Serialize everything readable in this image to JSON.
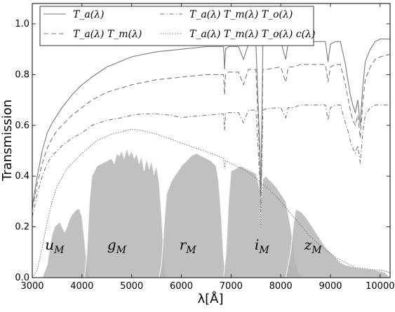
{
  "chart_data": {
    "type": "line",
    "title": "",
    "xlabel": "λ[Å]",
    "ylabel": "Transmission",
    "xlim": [
      3000,
      10200
    ],
    "ylim": [
      0.0,
      1.08
    ],
    "xticks": [
      3000,
      4000,
      5000,
      6000,
      7000,
      8000,
      9000,
      10000
    ],
    "xtick_labels": [
      "3000",
      "4000",
      "5000",
      "6000",
      "7000",
      "8000",
      "9000",
      "10000"
    ],
    "yticks": [
      0.0,
      0.2,
      0.4,
      0.6,
      0.8,
      1.0
    ],
    "ytick_labels": [
      "0.0",
      "0.2",
      "0.4",
      "0.6",
      "0.8",
      "1.0"
    ],
    "grid": false,
    "legend_position": "top",
    "legend": [
      {
        "label": "T_a(λ)",
        "style": "solid"
      },
      {
        "label": "T_a(λ) T_m(λ)",
        "style": "dashed"
      },
      {
        "label": "T_a(λ) T_m(λ) T_o(λ)",
        "style": "dashdot"
      },
      {
        "label": "T_a(λ) T_m(λ) T_o(λ) c(λ)",
        "style": "dotted"
      }
    ],
    "series": [
      {
        "name": "T_a(λ)",
        "style": "solid",
        "x": [
          3000,
          3100,
          3200,
          3300,
          3400,
          3500,
          3600,
          3800,
          4000,
          4200,
          4500,
          5000,
          5500,
          6000,
          6500,
          6850,
          6870,
          6890,
          6950,
          7150,
          7250,
          7350,
          7500,
          7580,
          7600,
          7640,
          7700,
          8000,
          8100,
          8150,
          8250,
          8400,
          8900,
          8950,
          9000,
          9100,
          9200,
          9300,
          9350,
          9400,
          9450,
          9500,
          9550,
          9600,
          9650,
          9700,
          9800,
          9900,
          10000,
          10200
        ],
        "y": [
          0.28,
          0.4,
          0.5,
          0.57,
          0.61,
          0.64,
          0.67,
          0.72,
          0.76,
          0.79,
          0.83,
          0.87,
          0.89,
          0.9,
          0.91,
          0.91,
          0.82,
          0.9,
          0.91,
          0.91,
          0.86,
          0.92,
          0.92,
          0.5,
          0.32,
          0.92,
          0.92,
          0.93,
          0.86,
          0.93,
          0.93,
          0.93,
          0.93,
          0.85,
          0.92,
          0.93,
          0.93,
          0.84,
          0.78,
          0.72,
          0.68,
          0.65,
          0.7,
          0.6,
          0.75,
          0.85,
          0.9,
          0.93,
          0.94,
          0.94
        ]
      },
      {
        "name": "T_a(λ) T_m(λ)",
        "style": "dashed",
        "x": [
          3000,
          3100,
          3200,
          3300,
          3400,
          3500,
          3600,
          3800,
          4000,
          4200,
          4500,
          5000,
          5500,
          6000,
          6500,
          6850,
          6870,
          6890,
          6950,
          7150,
          7250,
          7350,
          7500,
          7580,
          7600,
          7640,
          7700,
          8000,
          8100,
          8150,
          8250,
          8400,
          8900,
          8950,
          9000,
          9100,
          9200,
          9300,
          9350,
          9400,
          9450,
          9500,
          9550,
          9600,
          9650,
          9700,
          9800,
          9900,
          10000,
          10200
        ],
        "y": [
          0.27,
          0.37,
          0.45,
          0.51,
          0.55,
          0.58,
          0.6,
          0.64,
          0.67,
          0.7,
          0.73,
          0.76,
          0.78,
          0.79,
          0.8,
          0.8,
          0.72,
          0.8,
          0.81,
          0.81,
          0.76,
          0.82,
          0.82,
          0.45,
          0.3,
          0.82,
          0.82,
          0.83,
          0.77,
          0.83,
          0.83,
          0.84,
          0.84,
          0.77,
          0.83,
          0.84,
          0.84,
          0.76,
          0.71,
          0.66,
          0.62,
          0.6,
          0.64,
          0.55,
          0.69,
          0.78,
          0.83,
          0.86,
          0.87,
          0.88
        ]
      },
      {
        "name": "T_a(λ) T_m(λ) T_o(λ)",
        "style": "dashdot",
        "x": [
          3000,
          3100,
          3200,
          3300,
          3400,
          3500,
          3600,
          3800,
          4000,
          4200,
          4500,
          4800,
          5000,
          5200,
          5500,
          5800,
          6000,
          6200,
          6500,
          6800,
          6850,
          6870,
          6890,
          6950,
          7150,
          7250,
          7350,
          7500,
          7580,
          7600,
          7640,
          7700,
          8000,
          8100,
          8150,
          8250,
          8400,
          8900,
          8950,
          9000,
          9100,
          9200,
          9300,
          9350,
          9400,
          9450,
          9500,
          9550,
          9600,
          9650,
          9700,
          9800,
          9900,
          10000,
          10200
        ],
        "y": [
          0.24,
          0.33,
          0.4,
          0.45,
          0.48,
          0.5,
          0.52,
          0.55,
          0.57,
          0.6,
          0.62,
          0.63,
          0.64,
          0.645,
          0.645,
          0.64,
          0.63,
          0.635,
          0.64,
          0.645,
          0.645,
          0.58,
          0.645,
          0.65,
          0.65,
          0.61,
          0.66,
          0.66,
          0.38,
          0.26,
          0.66,
          0.665,
          0.67,
          0.63,
          0.67,
          0.67,
          0.68,
          0.68,
          0.62,
          0.67,
          0.68,
          0.68,
          0.61,
          0.58,
          0.54,
          0.51,
          0.49,
          0.52,
          0.45,
          0.57,
          0.64,
          0.67,
          0.68,
          0.68,
          0.68
        ]
      },
      {
        "name": "T_a(λ) T_m(λ) T_o(λ) c(λ)",
        "style": "dotted",
        "x": [
          3000,
          3100,
          3200,
          3300,
          3400,
          3500,
          3700,
          4000,
          4300,
          4600,
          4900,
          5000,
          5200,
          5500,
          5800,
          6000,
          6300,
          6600,
          6850,
          6870,
          6890,
          7000,
          7300,
          7580,
          7600,
          7640,
          7800,
          8000,
          8300,
          8600,
          8900,
          9100,
          9300,
          9500,
          9700,
          9900,
          10000,
          10200
        ],
        "y": [
          0.0,
          0.03,
          0.12,
          0.22,
          0.3,
          0.36,
          0.43,
          0.49,
          0.54,
          0.565,
          0.58,
          0.585,
          0.58,
          0.565,
          0.545,
          0.53,
          0.51,
          0.49,
          0.47,
          0.43,
          0.46,
          0.45,
          0.42,
          0.38,
          0.2,
          0.37,
          0.34,
          0.3,
          0.23,
          0.16,
          0.11,
          0.08,
          0.06,
          0.04,
          0.035,
          0.03,
          0.03,
          0.02
        ]
      }
    ],
    "bands": [
      {
        "name": "u_M",
        "label": "u",
        "subscript": "M",
        "label_x": 3450,
        "label_y": 0.11,
        "x": [
          3200,
          3300,
          3350,
          3400,
          3450,
          3500,
          3550,
          3600,
          3650,
          3700,
          3750,
          3800,
          3850,
          3900,
          3950,
          4000,
          4050,
          4100,
          4150
        ],
        "y": [
          0.0,
          0.05,
          0.12,
          0.17,
          0.2,
          0.21,
          0.22,
          0.2,
          0.18,
          0.2,
          0.23,
          0.25,
          0.26,
          0.27,
          0.27,
          0.24,
          0.15,
          0.05,
          0.0
        ]
      },
      {
        "name": "g_M",
        "label": "g",
        "subscript": "M",
        "label_x": 4700,
        "label_y": 0.11,
        "x": [
          4050,
          4100,
          4150,
          4200,
          4300,
          4400,
          4500,
          4600,
          4650,
          4700,
          4750,
          4800,
          4850,
          4900,
          4950,
          5000,
          5050,
          5100,
          5150,
          5200,
          5250,
          5300,
          5350,
          5400,
          5450,
          5500,
          5550,
          5600,
          5650,
          5700
        ],
        "y": [
          0.0,
          0.1,
          0.3,
          0.4,
          0.44,
          0.45,
          0.46,
          0.47,
          0.45,
          0.49,
          0.48,
          0.5,
          0.47,
          0.51,
          0.48,
          0.5,
          0.47,
          0.49,
          0.45,
          0.48,
          0.42,
          0.47,
          0.43,
          0.46,
          0.41,
          0.44,
          0.38,
          0.25,
          0.08,
          0.0
        ]
      },
      {
        "name": "r_M",
        "label": "r",
        "subscript": "M",
        "label_x": 6130,
        "label_y": 0.11,
        "x": [
          5550,
          5600,
          5650,
          5700,
          5800,
          5900,
          6000,
          6100,
          6200,
          6300,
          6400,
          6500,
          6600,
          6700,
          6750,
          6800,
          6850,
          6900
        ],
        "y": [
          0.0,
          0.05,
          0.2,
          0.33,
          0.38,
          0.41,
          0.44,
          0.46,
          0.48,
          0.49,
          0.48,
          0.47,
          0.46,
          0.44,
          0.38,
          0.25,
          0.08,
          0.0
        ]
      },
      {
        "name": "i_M",
        "label": "i",
        "subscript": "M",
        "label_x": 7620,
        "label_y": 0.11,
        "x": [
          6850,
          6900,
          6950,
          7000,
          7100,
          7200,
          7300,
          7400,
          7500,
          7580,
          7600,
          7640,
          7700,
          7800,
          7900,
          8000,
          8100,
          8200,
          8300,
          8400
        ],
        "y": [
          0.0,
          0.1,
          0.3,
          0.42,
          0.43,
          0.44,
          0.43,
          0.42,
          0.41,
          0.35,
          0.2,
          0.39,
          0.4,
          0.38,
          0.36,
          0.33,
          0.3,
          0.2,
          0.06,
          0.0
        ]
      },
      {
        "name": "z_M",
        "label": "z",
        "subscript": "M",
        "label_x": 8650,
        "label_y": 0.11,
        "x": [
          8100,
          8200,
          8250,
          8300,
          8400,
          8500,
          8600,
          8700,
          8800,
          8900,
          9000,
          9100,
          9200,
          9300,
          9500,
          9700,
          9900,
          10100,
          10200
        ],
        "y": [
          0.0,
          0.1,
          0.2,
          0.27,
          0.26,
          0.24,
          0.21,
          0.18,
          0.15,
          0.12,
          0.1,
          0.08,
          0.06,
          0.05,
          0.04,
          0.035,
          0.03,
          0.02,
          0.0
        ]
      }
    ],
    "colors": {
      "lines": "#7a7a7a",
      "band_fill": "#b5b5b5",
      "band_overlap": "#8c8c8c",
      "band_edge": "#f5f5f5"
    }
  }
}
